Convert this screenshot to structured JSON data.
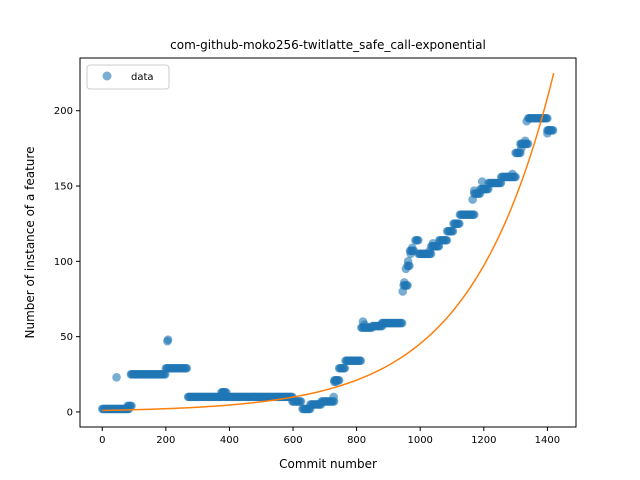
{
  "chart_data": {
    "type": "scatter",
    "title": "com-github-moko256-twitlatte_safe_call-exponential",
    "xlabel": "Commit number",
    "ylabel": "Number of instance of a feature",
    "xlim": [
      -70,
      1490
    ],
    "ylim": [
      -10,
      235
    ],
    "xticks": [
      0,
      200,
      400,
      600,
      800,
      1000,
      1200,
      1400
    ],
    "yticks": [
      0,
      50,
      100,
      150,
      200
    ],
    "grid": false,
    "legend": {
      "position": "upper-left",
      "entries": [
        "data"
      ]
    },
    "colors": {
      "data": "#1f77b4",
      "fit": "#ff7f0e"
    },
    "data_runs": [
      {
        "x_start": 0,
        "x_end": 85,
        "y": 2
      },
      {
        "x_start": 80,
        "x_end": 92,
        "y": 4
      },
      {
        "x_start": 90,
        "x_end": 200,
        "y": 25
      },
      {
        "x_start": 200,
        "x_end": 268,
        "y": 29
      },
      {
        "x_start": 270,
        "x_end": 380,
        "y": 10
      },
      {
        "x_start": 375,
        "x_end": 390,
        "y": 13
      },
      {
        "x_start": 385,
        "x_end": 598,
        "y": 10
      },
      {
        "x_start": 598,
        "x_end": 625,
        "y": 7
      },
      {
        "x_start": 630,
        "x_end": 655,
        "y": 2
      },
      {
        "x_start": 655,
        "x_end": 690,
        "y": 5
      },
      {
        "x_start": 690,
        "x_end": 730,
        "y": 7
      },
      {
        "x_start": 730,
        "x_end": 745,
        "y": 21
      },
      {
        "x_start": 745,
        "x_end": 765,
        "y": 29
      },
      {
        "x_start": 765,
        "x_end": 815,
        "y": 34
      },
      {
        "x_start": 815,
        "x_end": 850,
        "y": 56
      },
      {
        "x_start": 850,
        "x_end": 880,
        "y": 57
      },
      {
        "x_start": 880,
        "x_end": 945,
        "y": 59
      },
      {
        "x_start": 948,
        "x_end": 960,
        "y": 84
      },
      {
        "x_start": 960,
        "x_end": 968,
        "y": 97
      },
      {
        "x_start": 968,
        "x_end": 980,
        "y": 107
      },
      {
        "x_start": 985,
        "x_end": 995,
        "y": 114
      },
      {
        "x_start": 995,
        "x_end": 1035,
        "y": 105
      },
      {
        "x_start": 1035,
        "x_end": 1060,
        "y": 110
      },
      {
        "x_start": 1060,
        "x_end": 1085,
        "y": 114
      },
      {
        "x_start": 1085,
        "x_end": 1105,
        "y": 120
      },
      {
        "x_start": 1105,
        "x_end": 1125,
        "y": 125
      },
      {
        "x_start": 1125,
        "x_end": 1170,
        "y": 131
      },
      {
        "x_start": 1170,
        "x_end": 1190,
        "y": 145
      },
      {
        "x_start": 1190,
        "x_end": 1215,
        "y": 148
      },
      {
        "x_start": 1215,
        "x_end": 1255,
        "y": 152
      },
      {
        "x_start": 1255,
        "x_end": 1300,
        "y": 156
      },
      {
        "x_start": 1300,
        "x_end": 1315,
        "y": 172
      },
      {
        "x_start": 1315,
        "x_end": 1340,
        "y": 178
      },
      {
        "x_start": 1340,
        "x_end": 1400,
        "y": 195
      },
      {
        "x_start": 1400,
        "x_end": 1420,
        "y": 187
      }
    ],
    "data_extra": [
      [
        45,
        23
      ],
      [
        205,
        47
      ],
      [
        207,
        48
      ],
      [
        380,
        13
      ],
      [
        728,
        10
      ],
      [
        730,
        20
      ],
      [
        735,
        20
      ],
      [
        820,
        60
      ],
      [
        825,
        58
      ],
      [
        945,
        80
      ],
      [
        950,
        86
      ],
      [
        955,
        95
      ],
      [
        962,
        100
      ],
      [
        970,
        105
      ],
      [
        975,
        109
      ],
      [
        1030,
        107
      ],
      [
        1040,
        112
      ],
      [
        1165,
        141
      ],
      [
        1170,
        147
      ],
      [
        1195,
        153
      ],
      [
        1290,
        158
      ],
      [
        1318,
        175
      ],
      [
        1330,
        180
      ],
      [
        1335,
        193
      ],
      [
        1345,
        195
      ],
      [
        1400,
        185
      ],
      [
        1405,
        187
      ]
    ],
    "fit": {
      "type": "exponential",
      "x_start": 0,
      "x_end": 1420,
      "y_start": 1,
      "y_end": 225
    }
  }
}
